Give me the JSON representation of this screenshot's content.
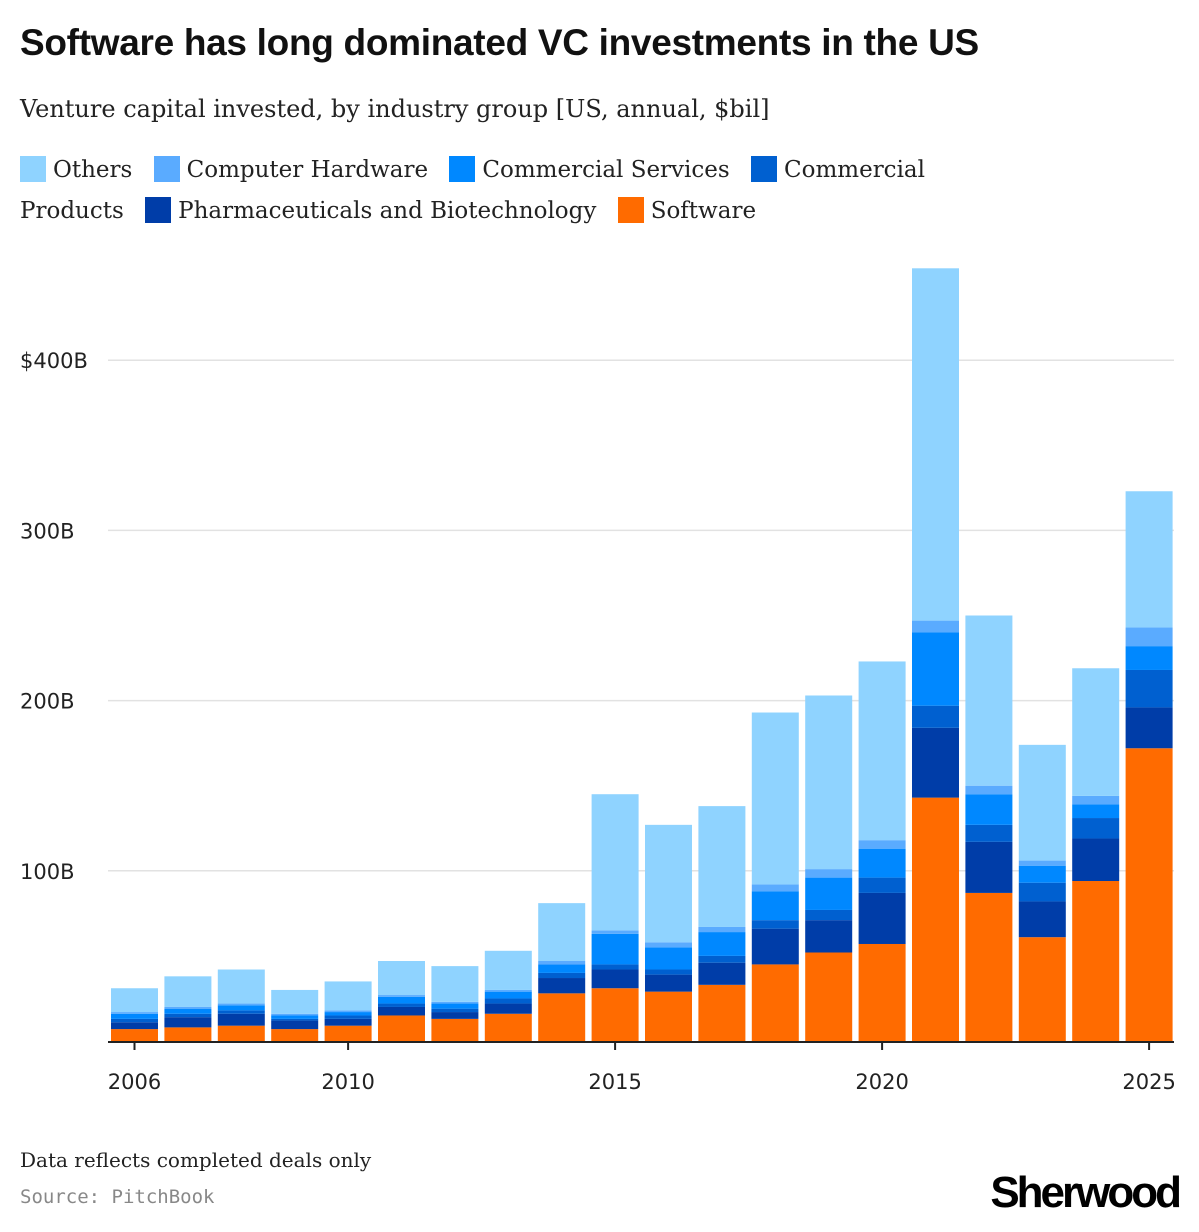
{
  "header": {
    "title": "Software has long dominated VC investments in the US",
    "subtitle": "Venture capital invested, by industry group [US, annual, $bil]"
  },
  "footer": {
    "note": "Data reflects completed deals only",
    "source": "Source: PitchBook",
    "brand": "Sherwood"
  },
  "chart_data": {
    "type": "bar",
    "stacked": true,
    "title": "Software has long dominated VC investments in the US",
    "subtitle": "Venture capital invested, by industry group [US, annual, $bil]",
    "xlabel": "",
    "ylabel": "",
    "ylim": [
      0,
      460
    ],
    "yticks": [
      100,
      200,
      300,
      400
    ],
    "ytick_labels": [
      "100B",
      "200B",
      "300B",
      "$400B"
    ],
    "xtick_labels": [
      "2006",
      "2010",
      "2015",
      "2020",
      "2025"
    ],
    "grid": true,
    "legend_position": "top",
    "categories": [
      "2006",
      "2007",
      "2008",
      "2009",
      "2010",
      "2011",
      "2012",
      "2013",
      "2014",
      "2015",
      "2016",
      "2017",
      "2018",
      "2019",
      "2020",
      "2021",
      "2022",
      "2023",
      "2024",
      "2025"
    ],
    "series": [
      {
        "name": "Software",
        "color": "#ff6b00",
        "values": [
          7,
          8,
          9,
          7,
          9,
          15,
          13,
          16,
          28,
          31,
          29,
          33,
          45,
          52,
          57,
          143,
          87,
          61,
          94,
          172
        ]
      },
      {
        "name": "Pharmaceuticals and Biotechnology",
        "color": "#003da8",
        "values": [
          4,
          6,
          7,
          5,
          4,
          5,
          4,
          6,
          9,
          11,
          10,
          13,
          21,
          19,
          30,
          41,
          30,
          21,
          25,
          24
        ]
      },
      {
        "name": "Commercial Products",
        "color": "#0060d0",
        "values": [
          2,
          2,
          2,
          1,
          2,
          2,
          2,
          3,
          3,
          3,
          3,
          4,
          5,
          6,
          9,
          13,
          10,
          11,
          12,
          22
        ]
      },
      {
        "name": "Commercial Services",
        "color": "#0088ff",
        "values": [
          3,
          3,
          3,
          2,
          2,
          4,
          3,
          4,
          5,
          18,
          13,
          14,
          17,
          19,
          17,
          43,
          18,
          10,
          8,
          14
        ]
      },
      {
        "name": "Computer Hardware",
        "color": "#5aabff",
        "values": [
          1,
          1,
          1,
          1,
          1,
          1,
          1,
          1,
          2,
          2,
          3,
          3,
          4,
          5,
          5,
          7,
          5,
          3,
          5,
          11
        ]
      },
      {
        "name": "Others",
        "color": "#8fd3ff",
        "values": [
          14,
          18,
          20,
          14,
          17,
          20,
          21,
          23,
          34,
          80,
          69,
          71,
          101,
          102,
          105,
          207,
          100,
          68,
          75,
          80
        ]
      }
    ]
  },
  "legend": [
    {
      "label": "Others",
      "color": "#8fd3ff"
    },
    {
      "label": "Computer Hardware",
      "color": "#5aabff"
    },
    {
      "label": "Commercial Services",
      "color": "#0088ff"
    },
    {
      "label": "Commercial Products",
      "color": "#0060d0"
    },
    {
      "label": "Pharmaceuticals and Biotechnology",
      "color": "#003da8"
    },
    {
      "label": "Software",
      "color": "#ff6b00"
    }
  ]
}
